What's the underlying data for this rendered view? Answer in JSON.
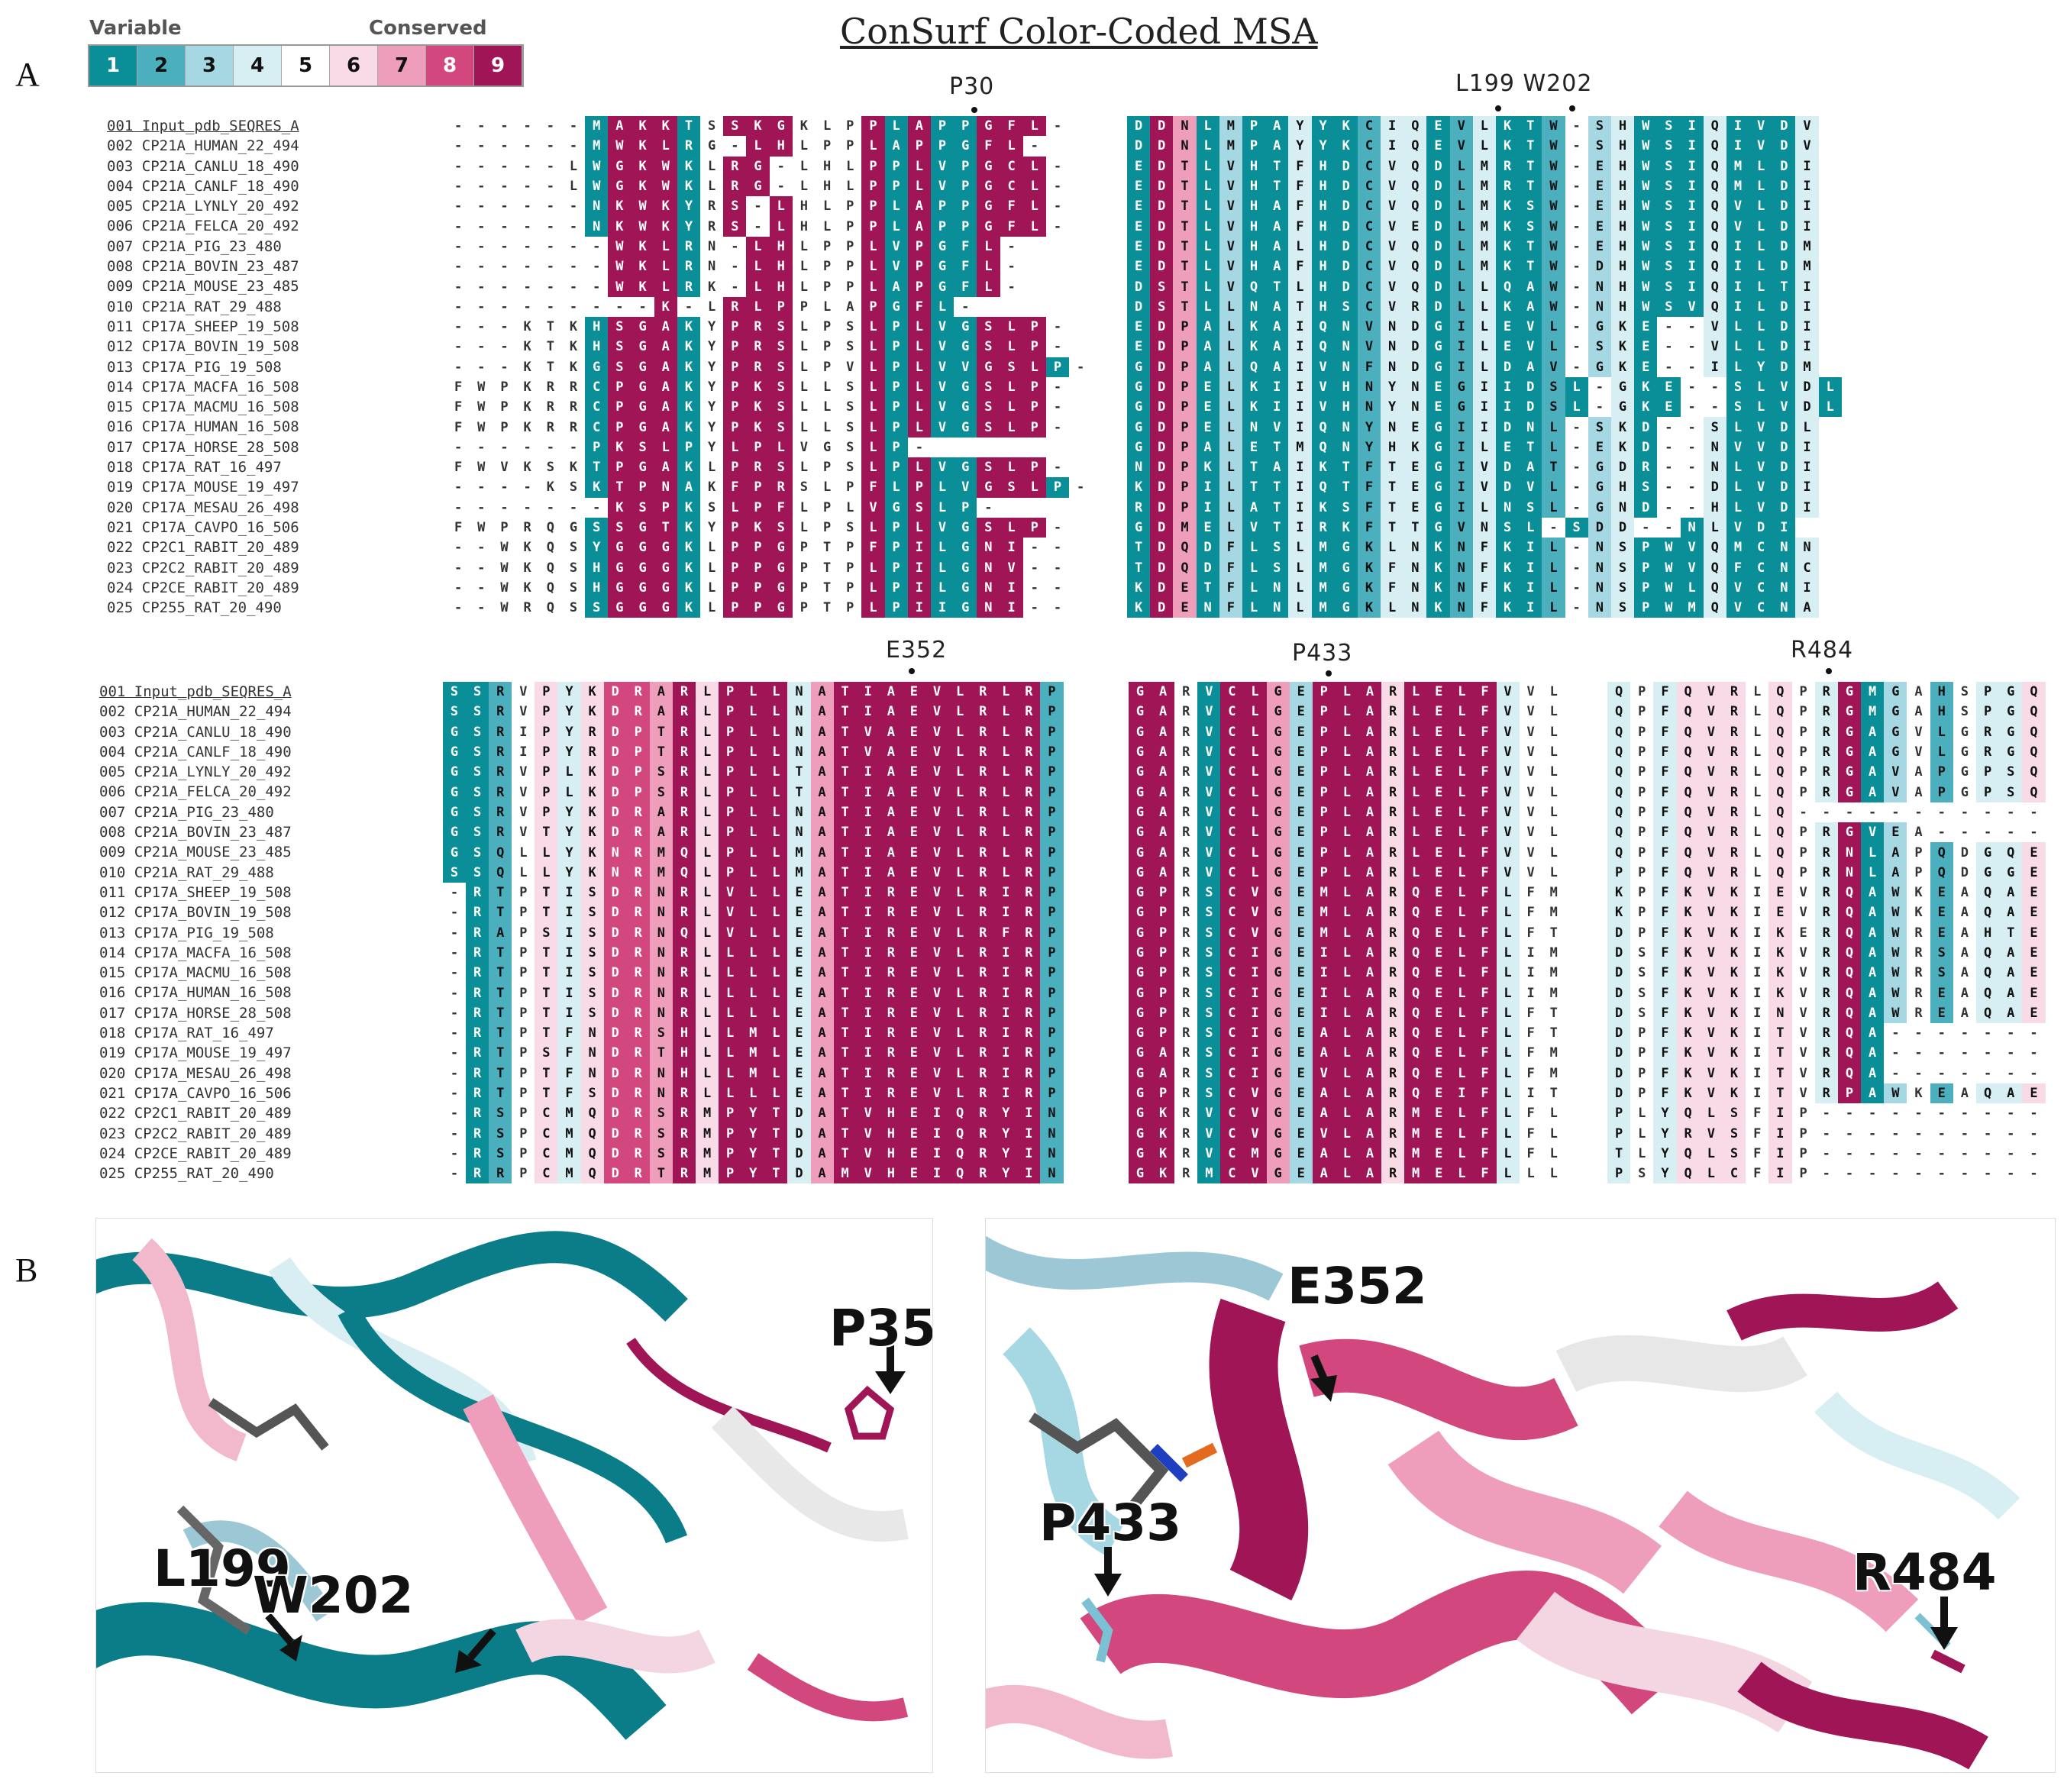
{
  "title": "ConSurf Color-Coded MSA",
  "panels": {
    "a": "A",
    "b": "B"
  },
  "legend": {
    "left_label": "Variable",
    "right_label": "Conserved",
    "grades": [
      {
        "label": "1",
        "color": "#0a8f99",
        "text": "#ffffff"
      },
      {
        "label": "2",
        "color": "#4bafbe",
        "text": "#111111"
      },
      {
        "label": "3",
        "color": "#a5d8e2",
        "text": "#111111"
      },
      {
        "label": "4",
        "color": "#d7eef2",
        "text": "#111111"
      },
      {
        "label": "5",
        "color": "#ffffff",
        "text": "#111111"
      },
      {
        "label": "6",
        "color": "#f8dbe6",
        "text": "#111111"
      },
      {
        "label": "7",
        "color": "#ee9dbb",
        "text": "#111111"
      },
      {
        "label": "8",
        "color": "#d2487e",
        "text": "#ffffff"
      },
      {
        "label": "9",
        "color": "#a01556",
        "text": "#ffffff"
      }
    ]
  },
  "sequence_names": [
    "001 Input_pdb_SEQRES_A",
    "002 CP21A_HUMAN_22_494",
    "003 CP21A_CANLU_18_490",
    "004 CP21A_CANLF_18_490",
    "005 CP21A_LYNLY_20_492",
    "006 CP21A_FELCA_20_492",
    "007 CP21A_PIG_23_480",
    "008 CP21A_BOVIN_23_487",
    "009 CP21A_MOUSE_23_485",
    "010 CP21A_RAT_29_488",
    "011 CP17A_SHEEP_19_508",
    "012 CP17A_BOVIN_19_508",
    "013 CP17A_PIG_19_508",
    "014 CP17A_MACFA_16_508",
    "015 CP17A_MACMU_16_508",
    "016 CP17A_HUMAN_16_508",
    "017 CP17A_HORSE_28_508",
    "018 CP17A_RAT_16_497",
    "019 CP17A_MOUSE_19_497",
    "020 CP17A_MESAU_26_498",
    "021 CP17A_CAVPO_16_506",
    "022 CP2C1_RABIT_20_489",
    "023 CP2C2_RABIT_20_489",
    "024 CP2CE_RABIT_20_489",
    "025 CP255_RAT_20_490"
  ],
  "blocks": [
    {
      "grades": "00000019991099900091911999109000099019911909",
      "rows": [
        "------MAKKTSSKGKLPPLAPPGFL-",
        "------MWKLRG-LHLPPLAPPGFL-",
        "-----LWGKWKLRG-LHLPPLVPGCL-",
        "-----LWGKWKLRG-LHLPPLVPGCL-",
        "------NKWKYRS-LHLPPLAPPGFL-",
        "------NKWKYRS-LHLPPLAPPGFL-",
        "-------WKLRN-LHLPPLVPGFL-",
        "-------WKLRN-LHLPPLVPGFL-",
        "-------WKLRK-LHLPPLAPGFL-",
        "---------K-LRLPPLAPGFL-",
        "---KTKHSGAKYPRSLPSLPLVGSLP-",
        "---KTKHSGAKYPRSLPSLPLVGSLP-",
        "---KTKGSGAKYPRSLPVLPLVVGSLP-",
        "FWPKRRCPGAKYPKSLLSLPLVGSLP-",
        "FWPKRRCPGAKYPKSLLSLPLVGSLP-",
        "FWPKRRCPGAKYPKSLLSLPLVGSLP-",
        "------PKSLPYLPLVGSLP-",
        "FWVKSKTPGAKLPRSLPSLPLVGSLP-",
        "----KSKTPNAKFPRSLPFLPLVGSLP-",
        "-------KSPKSLPFLPLVGSLP-",
        "FWPRQGSSGTKYPKSLPSLPLVGSLP-",
        "--WKQSYGGGKLPPGPTPFPILGNI--",
        "--WKQSHGGGKLPPGPTPLPILGNV--",
        "--WKQSHGGGKLPPGPTPLPILGNI--",
        "--WRQSSGGGKLPPGPTPLPIIGNI--"
      ]
    },
    {
      "grades": "1971311411244124112134111411141",
      "rows": [
        "DDNLMPAYYKCIQEVLKTW-SHWSIQIVDV",
        "DDNLMPAYYKCIQEVLKTW-SHWSIQIVDV",
        "EDTLVHTFHDCVQDLMRTW-EHWSIQMLDI",
        "EDTLVHTFHDCVQDLMRTW-EHWSIQMLDI",
        "EDTLVHAFHDCVQDLMKSW-EHWSIQVLDI",
        "EDTLVHAFHDCVEDLMKSW-EHWSIQVLDI",
        "EDTLVHALHDCVQDLMKTW-EHWSIQILDM",
        "EDTLVHAFHDCVQDLMKTW-DHWSIQILDM",
        "DSTLVQTLHDCVQDLLQAW-NHWSIQILTI",
        "DSTLLNATHSCVRDLLKAW-NHWSVQILDI",
        "EDPALKAIQNVNDGILEVL-GKE--VLLDI",
        "EDPALKAIQNVNDGILEVL-SKE--VLLDI",
        "GDPALQAIVNFNDGILDAV-GKE--ILYDM",
        "GDPELKIIVHNYNEGIIDSL-GKE--SLVDL",
        "GDPELKIIVHNYNEGIIDSL-GKE--SLVDL",
        "GDPELNVIQNYNEGIIDNL-SKD--SLVDL",
        "GDPALETMQNYHKGILETL-EKD--NVVDI",
        "NDPKLTAIKTFTEGIVDAT-GDR--NLVDI",
        "KDPILTTIQTFTEGIVDVL-GHS--DLVDI",
        "RDPILATIKSFTEGILNSL-GND--HLVDI",
        "GDMELVTIRKFTTGVNSL-SDD--NLVDI",
        "TDQDFLSLMGKLNKNFKIL-NSPWVQMCNN",
        "TDQDFLSLMGKFNKNFKIL-NSPWVQFCNC",
        "KDETFLNLMGKFNKNFKIL-NSPWLQVCNI",
        "KDENFLNLMGKLNKNFKIL-NSPWMQVCNA"
      ]
    },
    {
      "grades": "112564688796999479999999992566",
      "rows": [
        "SSRVPYKDRARLPLLNATIAEVLRLRP",
        "SSRVPYKDRARLPLLNATIAEVLRLRP",
        "GSRIPYRDPTRLPLLNATVAEVLRLRP",
        "GSRIPYRDPTRLPLLNATVAEVLRLRP",
        "GSRVPLKDPSRLPLLTATIAEVLRLRP",
        "GSRVPLKDPSRLPLLTATIAEVLRLRP",
        "GSRVPYKDRARLPLLNATIAEVLRLRP",
        "GSRVTYKDRARLPLLNATIAEVLRLRP",
        "GSQLLYKNRMQLPLLMATIAEVLRLRP",
        "SSQLLYKNRMQLPLLMATIAEVLRLRP",
        "-RTPTISDRNRLVLLEATIREVLRIRP",
        "-RTPTISDRNRLVLLEATIREVLRIRP",
        "-RAPSISDRNQLVLLEATIREVLRFRP",
        "-RTPTISDRNRLLLLEATIREVLRIRP",
        "-RTPTISDRNRLLLLEATIREVLRIRP",
        "-RTPTISDRNRLLLLEATIREVLRIRP",
        "-RTPTISDRNRLLLLEATIREVLRIRP",
        "-RTPTFNDRSHLLMLEATIREVLRIRP",
        "-RTPSFNDRTHLLMLEATIREVLRIRP",
        "-RTPTFNDRNHLLMLEATIREVLRIRP",
        "-RTPTFSDRNRLLLLEATIREVLRIRP",
        "-RSPCMQDRSRMPYTDATVHEIQRYIN",
        "-RSPCMQDRSRMPYTDATVHEIQRYIN",
        "-RSPCMQDRSRMPYTDATVHEIQRYIN",
        "-RRPCMQDRTRMPYTDAMVHEIQRYIN"
      ]
    },
    {
      "grades": "99519973999699994",
      "rows": [
        "GARVCLGEPLARLELFVVL",
        "GARVCLGEPLARLELFVVL",
        "GARVCLGEPLARLELFVVL",
        "GARVCLGEPLARLELFVVL",
        "GARVCLGEPLARLELFVVL",
        "GARVCLGEPLARLELFVVL",
        "GARVCLGEPLARLELFVVL",
        "GARVCLGEPLARLELFVVL",
        "GARVCLGEPLARLELFVVL",
        "GARVCLGEPLARLELFVVL",
        "GPRSCVGEMLARQELFLFM",
        "GPRSCVGEMLARQELFLFM",
        "GPRSCVGEMLARQELFLFT",
        "GPRSCIGEILARQELFLIM",
        "GPRSCIGEILARQELFLIM",
        "GPRSCIGEILARQELFLIM",
        "GPRSCIGEILARQELFLFT",
        "GPRSCIGEALARQELFLFT",
        "GARSCIGEALARQELFLFM",
        "GARSCIGEVLARQELFLFM",
        "GPRSCVGEALARQEIFLIT",
        "GKRVCVGEALARMELFLFL",
        "GKRVCVGEVLARMELFLFL",
        "GKRVCMGEALARMELFLFL",
        "GKRMCVGEALARMELFLLL"
      ]
    },
    {
      "grades": "45466656549135254466",
      "rows": [
        "QPFQVRLQPRGMGAHSPGQ",
        "QPFQVRLQPRGMGAHSPGQ",
        "QPFQVRLQPRGAGVLGRGQ",
        "QPFQVRLQPRGAGVLGRGQ",
        "QPFQVRLQPRGAVAPGPSQ",
        "QPFQVRLQPRGAVAPGPSQ",
        "QPFQVRLQ-----------",
        "QPFQVRLQPRGVEA-----",
        "QPFQVRLQPRNLAPQDGQE",
        "PPFQVRLQPRNLAPQDGGE",
        "KPFKVKIEVRQAWKEAQAE",
        "KPFKVKIEVRQAWKEAQAE",
        "DPFKVKIKERQAWREAHTE",
        "DSFKVKIKVRQAWRSAQAE",
        "DSFKVKIKVRQAWRSAQAE",
        "DSFKVKIKVRQAWREAQAE",
        "DSFKVKINVRQAWREAQAE",
        "DPFKVKITVRQA-------",
        "DPFKVKITVRQA-------",
        "DPFKVKITVRQA-------",
        "DPFKVKITVRPAWKEAQAE",
        "PLYQLSFIP----------",
        "PLYRVSFIP----------",
        "TLYQLSFIP----------",
        "PSYQLCFIP----------"
      ]
    }
  ],
  "markers": [
    {
      "label": "P30",
      "pos": "top-a"
    },
    {
      "label": "L199 W202",
      "pos": "top-b"
    },
    {
      "label": "E352",
      "pos": "bottom-a"
    },
    {
      "label": "P433",
      "pos": "bottom-b"
    },
    {
      "label": "R484",
      "pos": "bottom-c"
    }
  ],
  "structure_labels": {
    "left": [
      "P35",
      "L199",
      "W202"
    ],
    "right": [
      "E352",
      "P433",
      "R484"
    ]
  }
}
